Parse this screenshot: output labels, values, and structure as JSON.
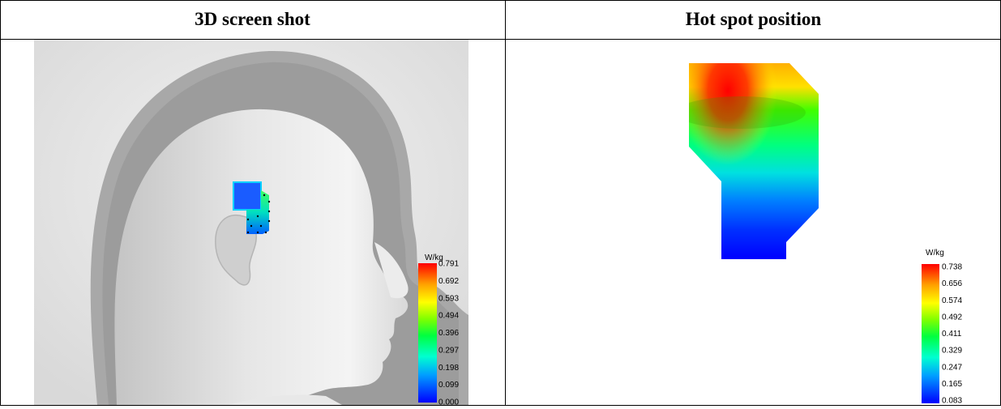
{
  "table": {
    "headers": [
      "3D screen shot",
      "Hot spot position"
    ]
  },
  "left_panel": {
    "legend": {
      "unit": "W/kg",
      "ticks": [
        "0.791",
        "0.692",
        "0.593",
        "0.494",
        "0.396",
        "0.297",
        "0.198",
        "0.099",
        "0.000"
      ]
    }
  },
  "right_panel": {
    "legend": {
      "unit": "W/kg",
      "ticks": [
        "0.738",
        "0.656",
        "0.574",
        "0.492",
        "0.411",
        "0.329",
        "0.247",
        "0.165",
        "0.083"
      ]
    }
  },
  "colors": {
    "scale": [
      "#0000ff",
      "#00a0ff",
      "#00ffd0",
      "#00ff40",
      "#80ff00",
      "#ffff00",
      "#ffa000",
      "#ff3000",
      "#ff0000"
    ]
  }
}
